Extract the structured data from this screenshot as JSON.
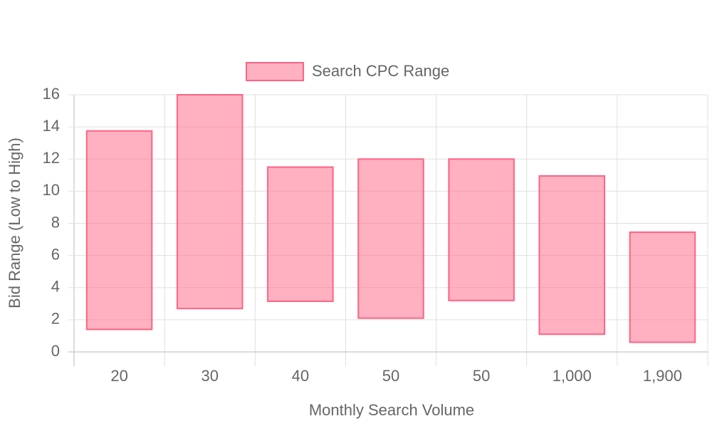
{
  "chart_data": {
    "type": "floating-bar",
    "xlabel": "Monthly Search Volume",
    "ylabel": "Bid Range (Low to High)",
    "categories": [
      "20",
      "30",
      "40",
      "50",
      "50",
      "1,000",
      "1,900"
    ],
    "series": [
      {
        "name": "Search CPC Range",
        "color": "#ff6384",
        "fill": "rgba(255,99,132,0.5)",
        "values": [
          [
            1.4,
            13.75
          ],
          [
            2.7,
            16
          ],
          [
            3.15,
            11.5
          ],
          [
            2.1,
            12
          ],
          [
            3.2,
            12
          ],
          [
            1.1,
            10.95
          ],
          [
            0.6,
            7.45
          ]
        ]
      }
    ],
    "ylim": [
      0,
      16
    ],
    "yticks": [
      0,
      2,
      4,
      6,
      8,
      10,
      12,
      14,
      16
    ],
    "grid": true,
    "legend": "top"
  }
}
